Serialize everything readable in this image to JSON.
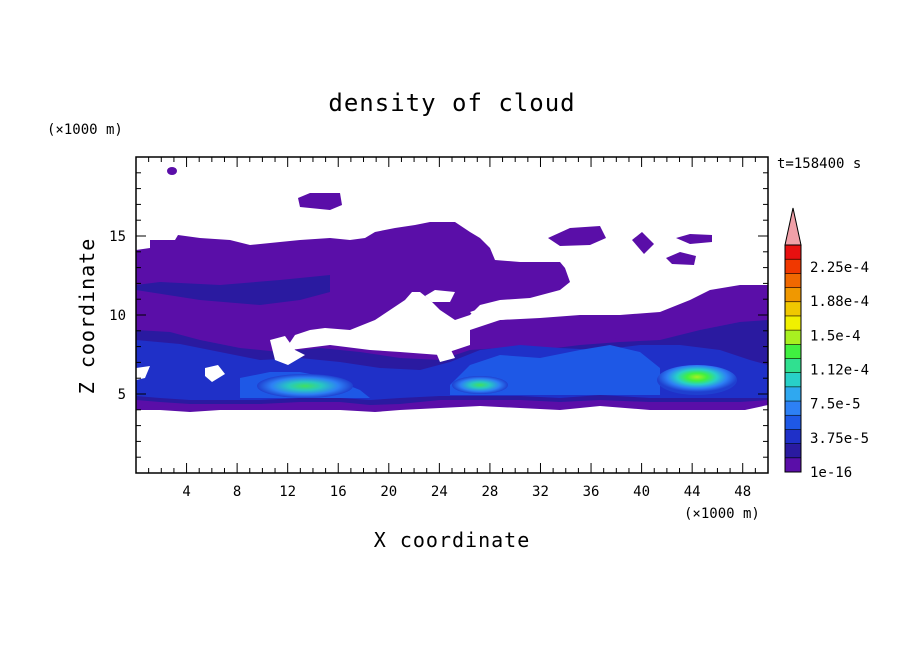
{
  "chart_data": {
    "type": "heatmap",
    "title": "density of cloud",
    "xlabel": "X coordinate",
    "ylabel": "Z coordinate",
    "x_unit": "(×1000 m)",
    "y_unit": "(×1000 m)",
    "time_label": "t=158400 s",
    "xlim": [
      0,
      50
    ],
    "ylim": [
      0,
      20
    ],
    "x_ticks": [
      "4",
      "8",
      "12",
      "16",
      "20",
      "24",
      "28",
      "32",
      "36",
      "40",
      "44",
      "48"
    ],
    "y_ticks": [
      "5",
      "10",
      "15"
    ],
    "colorbar": {
      "labels": [
        "2.25e-4",
        "1.88e-4",
        "1.5e-4",
        "1.12e-4",
        "7.5e-5",
        "3.75e-5",
        "1e-16"
      ],
      "colors": [
        "#5a0ea8",
        "#2a1aa0",
        "#1f30c8",
        "#1e58e6",
        "#2d80f5",
        "#2fa8f0",
        "#28d0c8",
        "#30e090",
        "#40f040",
        "#a8f020",
        "#f0f000",
        "#f0c800",
        "#f09800",
        "#f06800",
        "#f03800",
        "#e81010"
      ],
      "extend_color": "#f0a0a8"
    }
  }
}
